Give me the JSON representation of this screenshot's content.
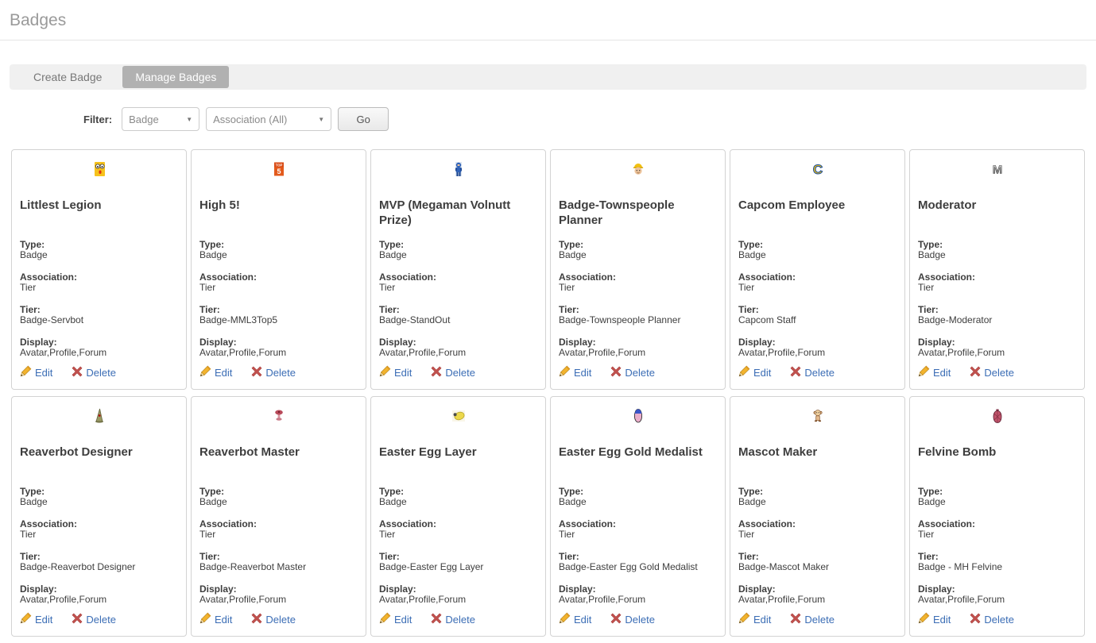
{
  "page": {
    "title": "Badges"
  },
  "tabs": [
    {
      "label": "Create Badge",
      "active": false
    },
    {
      "label": "Manage Badges",
      "active": true
    }
  ],
  "filter": {
    "label": "Filter:",
    "type_select_value": "Badge",
    "association_select_value": "Association (All)",
    "go_label": "Go"
  },
  "card_labels": {
    "type": "Type:",
    "association": "Association:",
    "tier": "Tier:",
    "display": "Display:",
    "edit": "Edit",
    "delete": "Delete"
  },
  "cards": [
    {
      "title": "Littlest Legion",
      "icon": "servbot-icon",
      "type": "Badge",
      "association": "Tier",
      "tier": "Badge-Servbot",
      "display": "Avatar,Profile,Forum"
    },
    {
      "title": "High 5!",
      "icon": "top5-icon",
      "type": "Badge",
      "association": "Tier",
      "tier": "Badge-MML3Top5",
      "display": "Avatar,Profile,Forum"
    },
    {
      "title": "MVP (Megaman Volnutt Prize)",
      "icon": "megaman-volnutt-icon",
      "type": "Badge",
      "association": "Tier",
      "tier": "Badge-StandOut",
      "display": "Avatar,Profile,Forum"
    },
    {
      "title": "Badge-Townspeople Planner",
      "icon": "construction-worker-icon",
      "type": "Badge",
      "association": "Tier",
      "tier": "Badge-Townspeople Planner",
      "display": "Avatar,Profile,Forum"
    },
    {
      "title": "Capcom Employee",
      "icon": "capcom-c-icon",
      "type": "Badge",
      "association": "Tier",
      "tier": "Capcom Staff",
      "display": "Avatar,Profile,Forum"
    },
    {
      "title": "Moderator",
      "icon": "moderator-m-icon",
      "type": "Badge",
      "association": "Tier",
      "tier": "Badge-Moderator",
      "display": "Avatar,Profile,Forum"
    },
    {
      "title": "Reaverbot Designer",
      "icon": "reaverbot-designer-icon",
      "type": "Badge",
      "association": "Tier",
      "tier": "Badge-Reaverbot Designer",
      "display": "Avatar,Profile,Forum"
    },
    {
      "title": "Reaverbot Master",
      "icon": "reaverbot-master-icon",
      "type": "Badge",
      "association": "Tier",
      "tier": "Badge-Reaverbot Master",
      "display": "Avatar,Profile,Forum"
    },
    {
      "title": "Easter Egg Layer",
      "icon": "easter-egg-layer-icon",
      "type": "Badge",
      "association": "Tier",
      "tier": "Badge-Easter Egg Layer",
      "display": "Avatar,Profile,Forum"
    },
    {
      "title": "Easter Egg Gold Medalist",
      "icon": "easter-egg-gold-icon",
      "type": "Badge",
      "association": "Tier",
      "tier": "Badge-Easter Egg Gold Medalist",
      "display": "Avatar,Profile,Forum"
    },
    {
      "title": "Mascot Maker",
      "icon": "mascot-maker-icon",
      "type": "Badge",
      "association": "Tier",
      "tier": "Badge-Mascot Maker",
      "display": "Avatar,Profile,Forum"
    },
    {
      "title": "Felvine Bomb",
      "icon": "felvine-bomb-icon",
      "type": "Badge",
      "association": "Tier",
      "tier": "Badge - MH Felvine",
      "display": "Avatar,Profile,Forum"
    }
  ],
  "colors": {
    "link_blue": "#3b6db5",
    "active_tab_gray": "#b1b1b1",
    "delete_red": "#c0504d",
    "pencil_gold": "#f2b32e",
    "title_gray": "#9a9a9a"
  }
}
